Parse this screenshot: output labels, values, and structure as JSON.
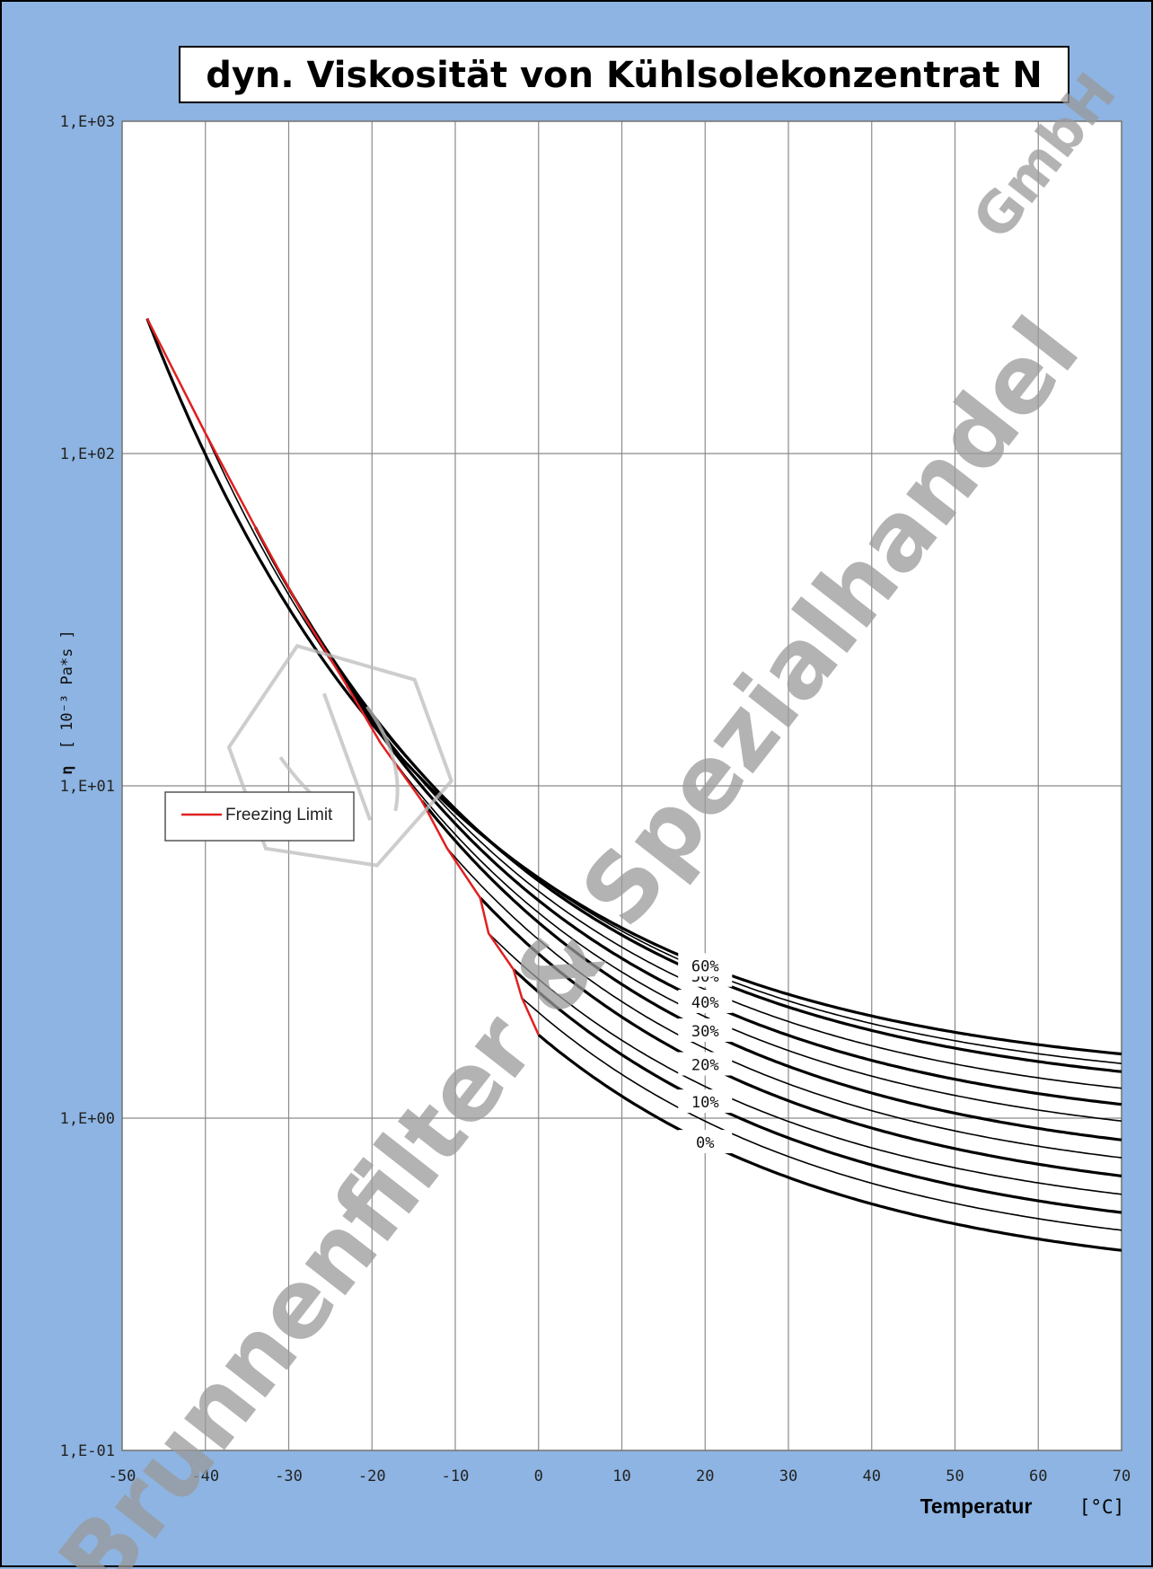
{
  "chart_data": {
    "type": "line",
    "title": "dyn. Viskosität von Kühlsolekonzentrat N",
    "xlabel": "Temperatur",
    "xunit": "[°C]",
    "ylabel_symbol": "η",
    "ylabel_unit": "[ 10⁻³ Pa*s ]",
    "yscale": "log",
    "xlim": [
      -50,
      70
    ],
    "ylim": [
      0.1,
      1000
    ],
    "x_ticks": [
      "-50",
      "-40",
      "-30",
      "-20",
      "-10",
      "0",
      "10",
      "20",
      "30",
      "40",
      "50",
      "60",
      "70"
    ],
    "y_ticks": [
      {
        "value": 0.1,
        "label": "1,E-01"
      },
      {
        "value": 1,
        "label": "1,E+00"
      },
      {
        "value": 10,
        "label": "1,E+01"
      },
      {
        "value": 100,
        "label": "1,E+02"
      },
      {
        "value": 1000,
        "label": "1,E+03"
      }
    ],
    "grid": true,
    "legend": [
      {
        "name": "Freezing Limit",
        "color": "#e02020"
      }
    ],
    "legend_position": "left-middle",
    "series": [
      {
        "label": "0%",
        "t_start": 0,
        "eta_start": 1.78,
        "eta_70": 0.4,
        "curve_label": true
      },
      {
        "label": "",
        "t_start": -2,
        "eta_start": 2.3,
        "eta_70": 0.46,
        "curve_label": false
      },
      {
        "label": "10%",
        "t_start": -3,
        "eta_start": 2.8,
        "eta_70": 0.52,
        "curve_label": true
      },
      {
        "label": "",
        "t_start": -6,
        "eta_start": 3.6,
        "eta_70": 0.59,
        "curve_label": false
      },
      {
        "label": "20%",
        "t_start": -7,
        "eta_start": 4.6,
        "eta_70": 0.67,
        "curve_label": true
      },
      {
        "label": "",
        "t_start": -11,
        "eta_start": 6.5,
        "eta_70": 0.76,
        "curve_label": false
      },
      {
        "label": "30%",
        "t_start": -14,
        "eta_start": 9.0,
        "eta_70": 0.86,
        "curve_label": true
      },
      {
        "label": "",
        "t_start": -19,
        "eta_start": 13.5,
        "eta_70": 0.98,
        "curve_label": false
      },
      {
        "label": "40%",
        "t_start": -23,
        "eta_start": 20.0,
        "eta_70": 1.1,
        "curve_label": true
      },
      {
        "label": "",
        "t_start": -28,
        "eta_start": 32.0,
        "eta_70": 1.23,
        "curve_label": false
      },
      {
        "label": "50%",
        "t_start": -34,
        "eta_start": 60.0,
        "eta_70": 1.38,
        "curve_label": true
      },
      {
        "label": "",
        "t_start": -40,
        "eta_start": 115,
        "eta_70": 1.46,
        "curve_label": false
      },
      {
        "label": "60%",
        "t_start": -47,
        "eta_start": 255,
        "eta_70": 1.56,
        "curve_label": true
      }
    ],
    "freezing_limit": [
      {
        "t": -47,
        "eta": 255
      },
      {
        "t": -40,
        "eta": 115
      },
      {
        "t": -34,
        "eta": 60
      },
      {
        "t": -28,
        "eta": 32
      },
      {
        "t": -23,
        "eta": 20
      },
      {
        "t": -19,
        "eta": 13.5
      },
      {
        "t": -14,
        "eta": 9
      },
      {
        "t": -11,
        "eta": 6.5
      },
      {
        "t": -7,
        "eta": 4.6
      },
      {
        "t": -6,
        "eta": 3.6
      },
      {
        "t": -3,
        "eta": 2.8
      },
      {
        "t": -2,
        "eta": 2.3
      },
      {
        "t": 0,
        "eta": 1.78
      }
    ]
  },
  "watermark": {
    "text": "Brunnenfilter & Spezialhandel",
    "suffix": "GmbH"
  }
}
